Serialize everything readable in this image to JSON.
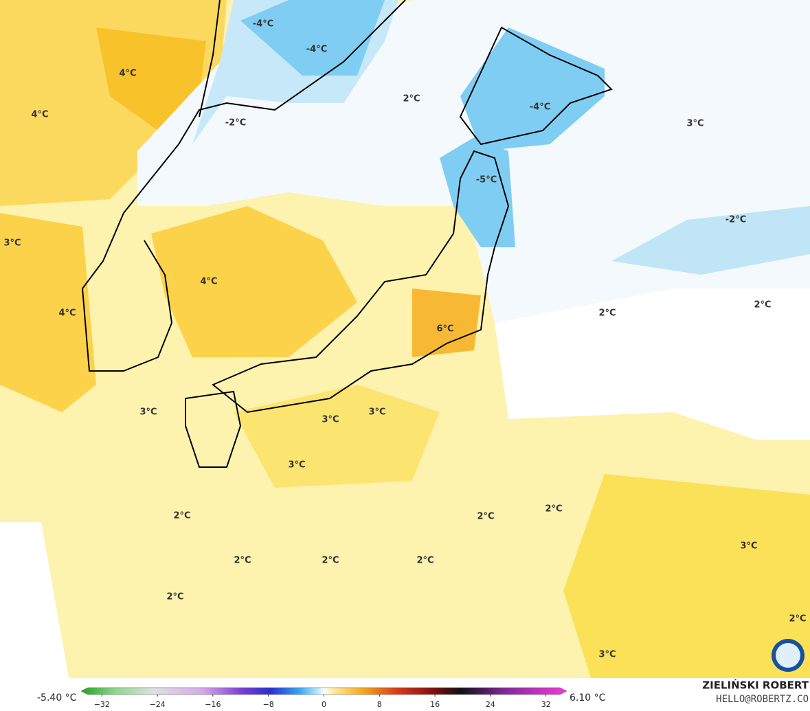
{
  "map": {
    "labels": [
      "-4°C",
      "-4°C",
      "4°C",
      "4°C",
      "2°C",
      "-4°C",
      "3°C",
      "-2°C",
      "-5°C",
      "-2°C",
      "3°C",
      "4°C",
      "4°C",
      "2°C",
      "2°C",
      "6°C",
      "3°C",
      "3°C",
      "3°C",
      "3°C",
      "2°C",
      "2°C",
      "2°C",
      "3°C",
      "2°C",
      "2°C",
      "2°C",
      "2°C",
      "2°C",
      "3°C"
    ]
  },
  "colorbar": {
    "min_label": "-5.40 °C",
    "max_label": "6.10 °C",
    "ticks": [
      {
        "value": -32,
        "label": "−32"
      },
      {
        "value": -24,
        "label": "−24"
      },
      {
        "value": -16,
        "label": "−16"
      },
      {
        "value": -8,
        "label": "−8"
      },
      0,
      8,
      16,
      24,
      32
    ],
    "lim": [
      -35,
      35
    ]
  },
  "credit": {
    "author": "ZIELIŃSKI ROBERT",
    "email": "HELLO@ROBERTZ.CO"
  }
}
